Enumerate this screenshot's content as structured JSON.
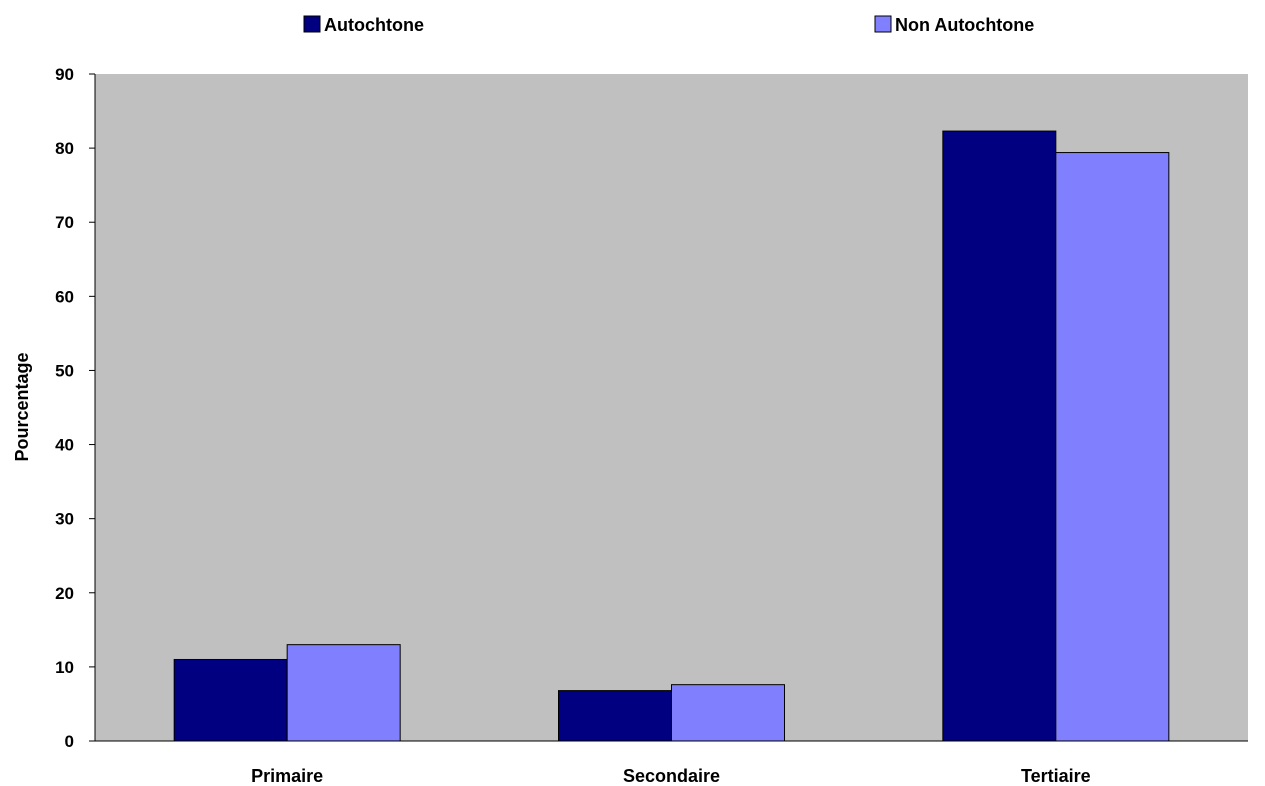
{
  "chart_data": {
    "type": "bar",
    "categories": [
      "Primaire",
      "Secondaire",
      "Tertiaire"
    ],
    "series": [
      {
        "name": "Autochtone",
        "values": [
          11,
          6.8,
          82.3
        ],
        "color": "#000080"
      },
      {
        "name": "Non Autochtone",
        "values": [
          13,
          7.6,
          79.4
        ],
        "color": "#8080ff"
      }
    ],
    "ylabel": "Pourcentage",
    "ylim": [
      0,
      90
    ],
    "yticks": [
      0,
      10,
      20,
      30,
      40,
      50,
      60,
      70,
      80,
      90
    ],
    "plot_background": "#c0c0c0",
    "legend_position": "top"
  }
}
